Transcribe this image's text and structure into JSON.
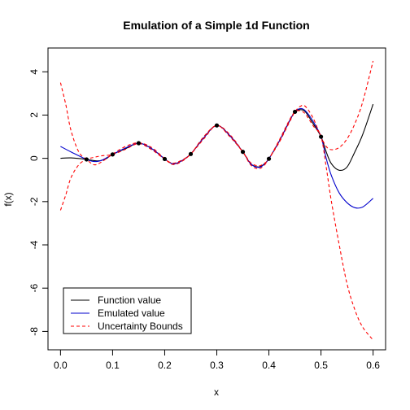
{
  "chart_data": {
    "type": "line",
    "title": "Emulation of a Simple 1d Function",
    "xlabel": "x",
    "ylabel": "f(x)",
    "xlim": [
      -0.024,
      0.624
    ],
    "ylim": [
      -8.85,
      5.1
    ],
    "xticks": [
      "0.0",
      "0.1",
      "0.2",
      "0.3",
      "0.4",
      "0.5",
      "0.6"
    ],
    "xtick_values": [
      0.0,
      0.1,
      0.2,
      0.3,
      0.4,
      0.5,
      0.6
    ],
    "yticks": [
      "-8",
      "-6",
      "-4",
      "-2",
      "0",
      "2",
      "4"
    ],
    "ytick_values": [
      -8,
      -6,
      -4,
      -2,
      0,
      2,
      4
    ],
    "legend_position": "bottom-left",
    "series": [
      {
        "name": "Function value",
        "color": "#000000",
        "dash": "solid",
        "points": [
          [
            0.0,
            0.0
          ],
          [
            0.02,
            0.02
          ],
          [
            0.05,
            -0.05
          ],
          [
            0.07,
            -0.12
          ],
          [
            0.085,
            -0.05
          ],
          [
            0.1,
            0.18
          ],
          [
            0.125,
            0.45
          ],
          [
            0.15,
            0.7
          ],
          [
            0.175,
            0.45
          ],
          [
            0.2,
            -0.03
          ],
          [
            0.215,
            -0.25
          ],
          [
            0.23,
            -0.15
          ],
          [
            0.25,
            0.2
          ],
          [
            0.275,
            0.95
          ],
          [
            0.3,
            1.52
          ],
          [
            0.325,
            1.05
          ],
          [
            0.35,
            0.3
          ],
          [
            0.365,
            -0.25
          ],
          [
            0.38,
            -0.4
          ],
          [
            0.39,
            -0.28
          ],
          [
            0.4,
            -0.02
          ],
          [
            0.42,
            0.8
          ],
          [
            0.44,
            1.75
          ],
          [
            0.45,
            2.15
          ],
          [
            0.46,
            2.25
          ],
          [
            0.47,
            2.15
          ],
          [
            0.485,
            1.6
          ],
          [
            0.5,
            1.0
          ],
          [
            0.51,
            0.3
          ],
          [
            0.52,
            -0.25
          ],
          [
            0.535,
            -0.55
          ],
          [
            0.55,
            -0.4
          ],
          [
            0.565,
            0.3
          ],
          [
            0.58,
            1.1
          ],
          [
            0.6,
            2.5
          ]
        ]
      },
      {
        "name": "Emulated value",
        "color": "#0000cc",
        "dash": "solid",
        "points": [
          [
            0.0,
            0.55
          ],
          [
            0.02,
            0.3
          ],
          [
            0.05,
            -0.05
          ],
          [
            0.065,
            -0.15
          ],
          [
            0.08,
            -0.08
          ],
          [
            0.1,
            0.18
          ],
          [
            0.125,
            0.48
          ],
          [
            0.15,
            0.7
          ],
          [
            0.175,
            0.45
          ],
          [
            0.2,
            -0.03
          ],
          [
            0.215,
            -0.25
          ],
          [
            0.23,
            -0.15
          ],
          [
            0.25,
            0.2
          ],
          [
            0.275,
            0.95
          ],
          [
            0.3,
            1.52
          ],
          [
            0.325,
            1.05
          ],
          [
            0.35,
            0.3
          ],
          [
            0.365,
            -0.25
          ],
          [
            0.38,
            -0.42
          ],
          [
            0.39,
            -0.3
          ],
          [
            0.4,
            -0.02
          ],
          [
            0.42,
            0.8
          ],
          [
            0.44,
            1.75
          ],
          [
            0.45,
            2.15
          ],
          [
            0.46,
            2.3
          ],
          [
            0.47,
            2.2
          ],
          [
            0.485,
            1.7
          ],
          [
            0.5,
            1.0
          ],
          [
            0.51,
            0.0
          ],
          [
            0.52,
            -0.8
          ],
          [
            0.535,
            -1.6
          ],
          [
            0.55,
            -2.05
          ],
          [
            0.565,
            -2.28
          ],
          [
            0.58,
            -2.25
          ],
          [
            0.6,
            -1.85
          ]
        ]
      },
      {
        "name": "Uncertainty Bounds",
        "color": "#ff0000",
        "dash": "dashed",
        "points": [
          [
            0.0,
            3.5
          ],
          [
            0.01,
            2.5
          ],
          [
            0.02,
            1.3
          ],
          [
            0.035,
            0.3
          ],
          [
            0.05,
            -0.05
          ],
          [
            0.065,
            -0.3
          ],
          [
            0.08,
            -0.15
          ],
          [
            0.1,
            0.2
          ],
          [
            0.125,
            0.55
          ],
          [
            0.15,
            0.72
          ],
          [
            0.175,
            0.5
          ],
          [
            0.2,
            -0.02
          ],
          [
            0.215,
            -0.28
          ],
          [
            0.23,
            -0.18
          ],
          [
            0.25,
            0.2
          ],
          [
            0.275,
            1.0
          ],
          [
            0.3,
            1.52
          ],
          [
            0.325,
            1.1
          ],
          [
            0.35,
            0.3
          ],
          [
            0.365,
            -0.3
          ],
          [
            0.38,
            -0.48
          ],
          [
            0.39,
            -0.35
          ],
          [
            0.4,
            -0.02
          ],
          [
            0.42,
            0.75
          ],
          [
            0.44,
            1.7
          ],
          [
            0.45,
            2.15
          ],
          [
            0.46,
            2.4
          ],
          [
            0.47,
            2.4
          ],
          [
            0.485,
            1.85
          ],
          [
            0.5,
            1.0
          ],
          [
            0.51,
            0.55
          ],
          [
            0.52,
            0.4
          ],
          [
            0.535,
            0.5
          ],
          [
            0.55,
            0.9
          ],
          [
            0.565,
            1.6
          ],
          [
            0.58,
            2.6
          ],
          [
            0.6,
            4.5
          ]
        ]
      },
      {
        "name": "",
        "color": "#ff0000",
        "dash": "dashed",
        "points": [
          [
            0.0,
            -2.4
          ],
          [
            0.01,
            -1.7
          ],
          [
            0.02,
            -0.9
          ],
          [
            0.035,
            -0.3
          ],
          [
            0.05,
            -0.05
          ],
          [
            0.065,
            0.05
          ],
          [
            0.08,
            0.12
          ],
          [
            0.1,
            0.18
          ],
          [
            0.125,
            0.42
          ],
          [
            0.15,
            0.68
          ],
          [
            0.175,
            0.4
          ],
          [
            0.2,
            -0.04
          ],
          [
            0.215,
            -0.22
          ],
          [
            0.23,
            -0.12
          ],
          [
            0.25,
            0.2
          ],
          [
            0.275,
            0.9
          ],
          [
            0.3,
            1.52
          ],
          [
            0.325,
            1.0
          ],
          [
            0.35,
            0.3
          ],
          [
            0.365,
            -0.2
          ],
          [
            0.38,
            -0.35
          ],
          [
            0.39,
            -0.25
          ],
          [
            0.4,
            -0.02
          ],
          [
            0.42,
            0.85
          ],
          [
            0.44,
            1.8
          ],
          [
            0.45,
            2.15
          ],
          [
            0.46,
            2.2
          ],
          [
            0.47,
            2.05
          ],
          [
            0.485,
            1.5
          ],
          [
            0.5,
            1.0
          ],
          [
            0.51,
            -0.4
          ],
          [
            0.52,
            -2.0
          ],
          [
            0.535,
            -4.0
          ],
          [
            0.55,
            -5.8
          ],
          [
            0.565,
            -7.0
          ],
          [
            0.58,
            -7.8
          ],
          [
            0.6,
            -8.4
          ]
        ]
      }
    ],
    "observed_points": {
      "name": "",
      "color": "#000000",
      "x": [
        0.05,
        0.1,
        0.15,
        0.2,
        0.25,
        0.3,
        0.35,
        0.4,
        0.45,
        0.5
      ],
      "y": [
        -0.05,
        0.18,
        0.7,
        -0.03,
        0.2,
        1.52,
        0.3,
        -0.02,
        2.15,
        1.0
      ]
    }
  }
}
